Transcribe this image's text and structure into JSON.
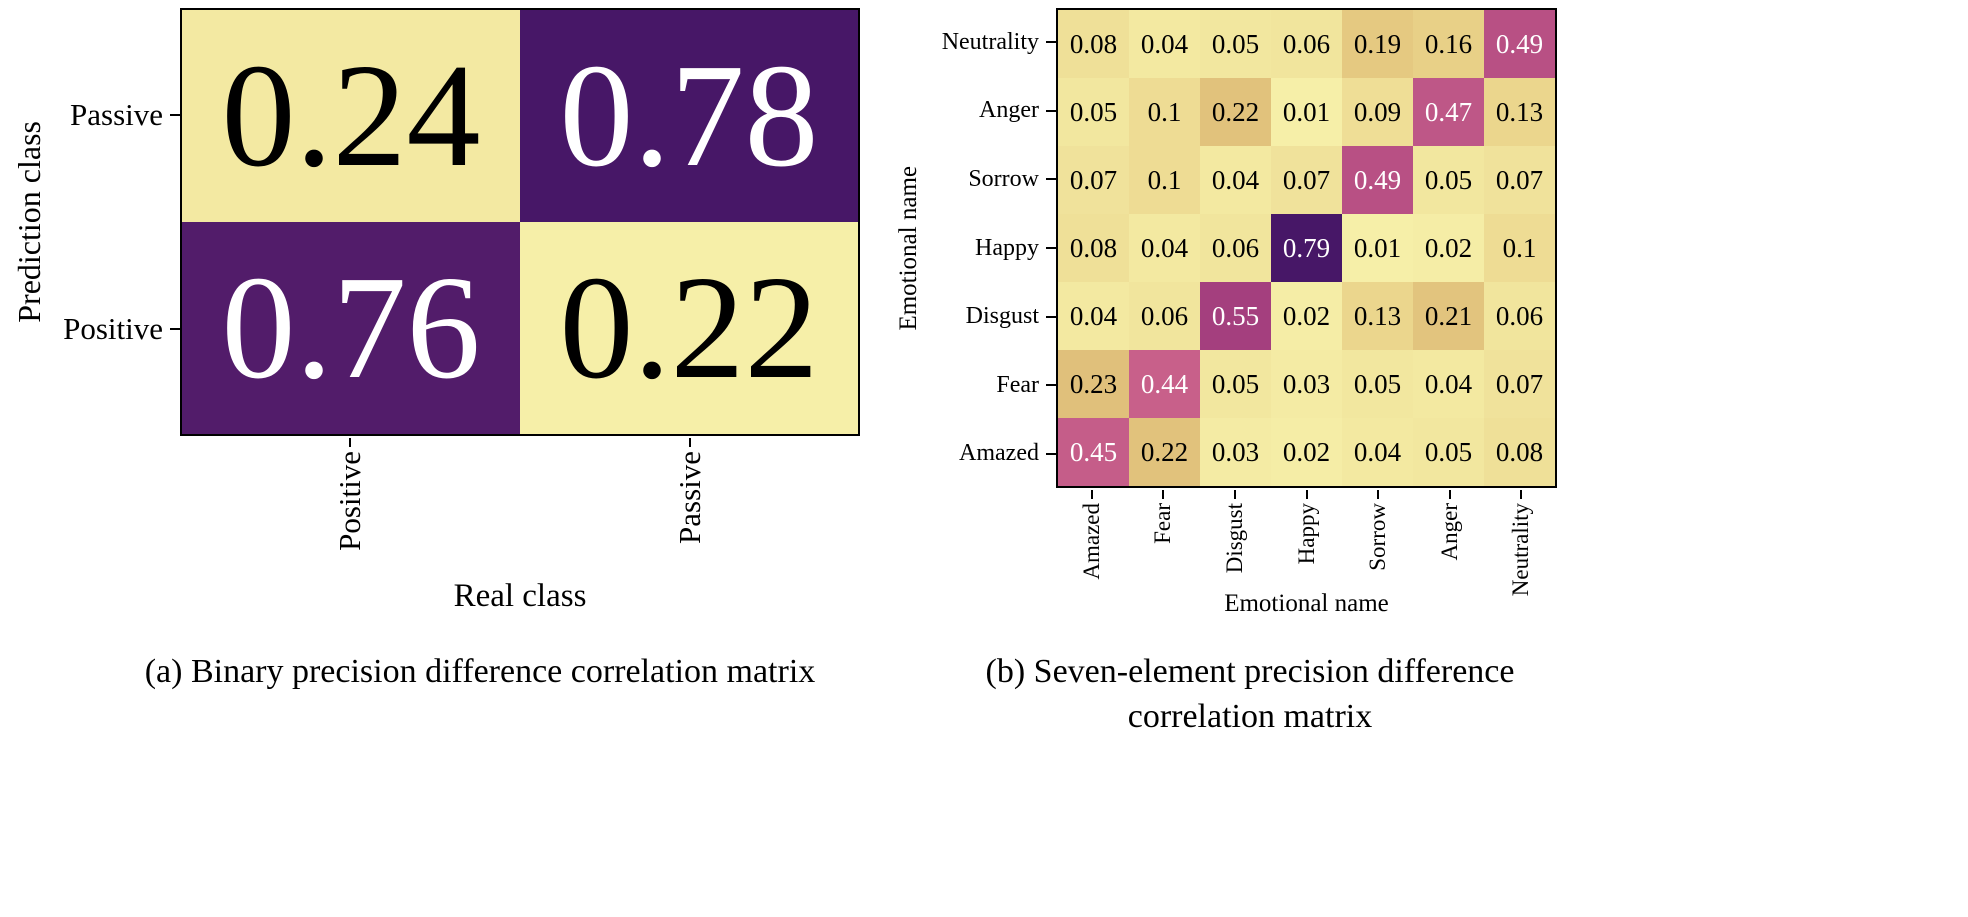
{
  "figure": {
    "background": "#ffffff"
  },
  "chart_data": [
    {
      "id": "a",
      "type": "heatmap",
      "caption": "(a) Binary precision difference correlation matrix",
      "xlabel": "Real class",
      "ylabel": "Prediction class",
      "x_categories": [
        "Positive",
        "Passive"
      ],
      "y_categories": [
        "Passive",
        "Positive"
      ],
      "values": [
        [
          0.24,
          0.78
        ],
        [
          0.76,
          0.22
        ]
      ],
      "vmin": 0.22,
      "vmax": 0.78,
      "grid": false,
      "legend": "none"
    },
    {
      "id": "b",
      "type": "heatmap",
      "caption_lines": [
        "(b) Seven-element precision difference",
        "correlation matrix"
      ],
      "xlabel": "Emotional name",
      "ylabel": "Emotional name",
      "x_categories": [
        "Amazed",
        "Fear",
        "Disgust",
        "Happy",
        "Sorrow",
        "Anger",
        "Neutrality"
      ],
      "y_categories": [
        "Neutrality",
        "Anger",
        "Sorrow",
        "Happy",
        "Disgust",
        "Fear",
        "Amazed"
      ],
      "values": [
        [
          0.08,
          0.04,
          0.05,
          0.06,
          0.19,
          0.16,
          0.49
        ],
        [
          0.05,
          0.1,
          0.22,
          0.01,
          0.09,
          0.47,
          0.13
        ],
        [
          0.07,
          0.1,
          0.04,
          0.07,
          0.49,
          0.05,
          0.07
        ],
        [
          0.08,
          0.04,
          0.06,
          0.79,
          0.01,
          0.02,
          0.1
        ],
        [
          0.04,
          0.06,
          0.55,
          0.02,
          0.13,
          0.21,
          0.06
        ],
        [
          0.23,
          0.44,
          0.05,
          0.03,
          0.05,
          0.04,
          0.07
        ],
        [
          0.45,
          0.22,
          0.03,
          0.02,
          0.04,
          0.05,
          0.08
        ]
      ],
      "vmin": 0.01,
      "vmax": 0.79,
      "grid": false,
      "legend": "none"
    }
  ],
  "colormap": {
    "stops": [
      [
        0.0,
        "#f6efa8"
      ],
      [
        0.22,
        "#e6cb82"
      ],
      [
        0.32,
        "#dcb976"
      ],
      [
        0.55,
        "#c8608a"
      ],
      [
        0.68,
        "#a8417f"
      ],
      [
        1.0,
        "#471767"
      ]
    ],
    "text_dark": "#000000",
    "text_light": "#ffffff",
    "light_text_threshold": 0.5
  }
}
